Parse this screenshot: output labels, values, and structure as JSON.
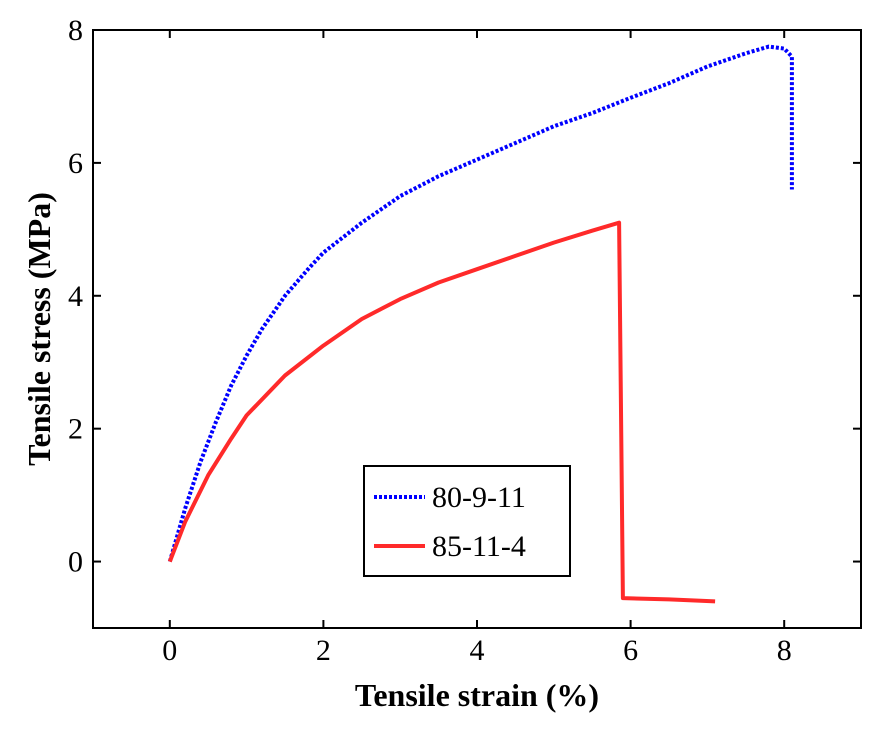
{
  "chart_data": {
    "type": "line",
    "title": "",
    "xlabel": "Tensile strain (%)",
    "ylabel": "Tensile stress (MPa)",
    "xlim": [
      -1,
      9
    ],
    "ylim": [
      -1,
      8
    ],
    "xticks": [
      0,
      2,
      4,
      6,
      8
    ],
    "yticks": [
      0,
      2,
      4,
      6,
      8
    ],
    "grid": false,
    "legend_position": "bottom-center",
    "series": [
      {
        "name": "80-9-11",
        "color": "#0000ff",
        "style": "dotted",
        "x": [
          0,
          0.2,
          0.4,
          0.6,
          0.8,
          1.0,
          1.2,
          1.5,
          1.8,
          2.0,
          2.5,
          3.0,
          3.5,
          4.0,
          4.5,
          5.0,
          5.5,
          6.0,
          6.5,
          7.0,
          7.5,
          7.8,
          8.0,
          8.1,
          8.1
        ],
        "y": [
          0,
          0.8,
          1.5,
          2.1,
          2.65,
          3.1,
          3.5,
          4.0,
          4.4,
          4.65,
          5.1,
          5.5,
          5.8,
          6.05,
          6.3,
          6.55,
          6.75,
          6.98,
          7.2,
          7.45,
          7.65,
          7.75,
          7.72,
          7.6,
          5.6
        ]
      },
      {
        "name": "85-11-4",
        "color": "#ff2a2a",
        "style": "solid",
        "x": [
          0,
          0.2,
          0.5,
          0.8,
          1.0,
          1.5,
          2.0,
          2.5,
          3.0,
          3.5,
          4.0,
          4.5,
          5.0,
          5.5,
          5.85,
          5.9,
          6.5,
          7.1
        ],
        "y": [
          0,
          0.6,
          1.3,
          1.85,
          2.2,
          2.8,
          3.25,
          3.65,
          3.95,
          4.2,
          4.4,
          4.6,
          4.8,
          4.98,
          5.1,
          -0.55,
          -0.57,
          -0.6
        ]
      }
    ]
  }
}
